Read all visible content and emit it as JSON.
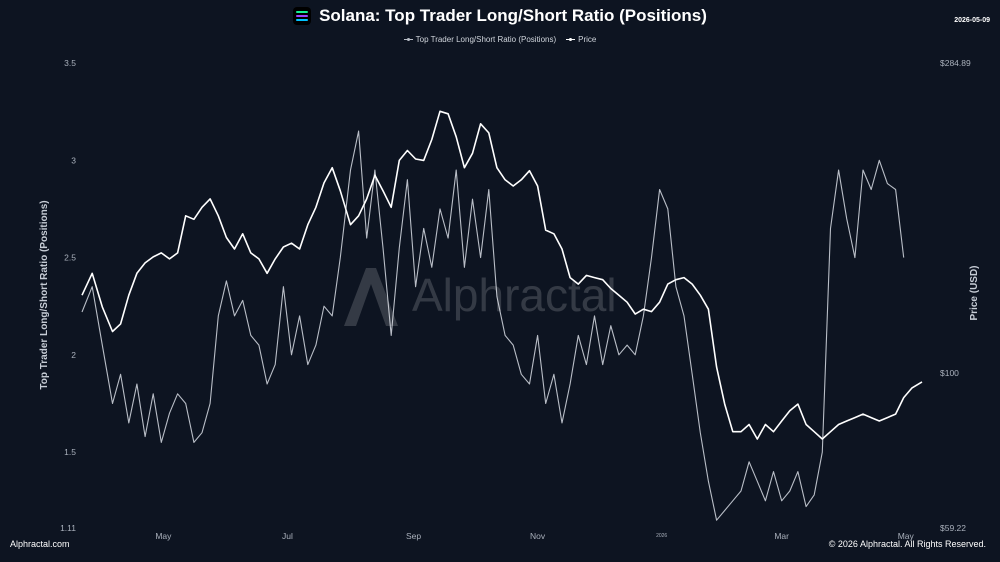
{
  "header": {
    "title": "Solana: Top Trader Long/Short Ratio (Positions)",
    "date": "2026-05-09"
  },
  "legend": {
    "ratio_label": "Top Trader Long/Short Ratio (Positions)",
    "price_label": "Price"
  },
  "watermark": "Alphractal",
  "footer": {
    "left": "Alphractal.com",
    "right": "© 2026 Alphractal. All Rights Reserved."
  },
  "colors": {
    "background": "#0d1421",
    "ratio_line": "#b9bec7",
    "price_line": "#ffffff",
    "logo_stripes": [
      "#14f195",
      "#9945ff",
      "#00c2ff"
    ]
  },
  "chart_data": {
    "type": "line",
    "title": "Solana: Top Trader Long/Short Ratio (Positions)",
    "ylabel": "Top Trader Long/Short Ratio (Positions)",
    "y2label": "Price (USD)",
    "ylim": [
      1.11,
      3.5
    ],
    "y_ticks": [
      {
        "value": 3.5,
        "label": "3.5"
      },
      {
        "value": 3,
        "label": "3"
      },
      {
        "value": 2.5,
        "label": "2.5"
      },
      {
        "value": 2,
        "label": "2"
      },
      {
        "value": 1.5,
        "label": "1.5"
      },
      {
        "value": 1.11,
        "label": "1.11"
      }
    ],
    "y2_scale": "log",
    "y2lim": [
      59.22,
      284.89
    ],
    "y2_ticks": [
      {
        "value": 284.89,
        "label": "$284.89"
      },
      {
        "value": 100,
        "label": "$100"
      },
      {
        "value": 59.22,
        "label": "$59.22"
      }
    ],
    "x_ticks": [
      "May",
      "Jul",
      "Sep",
      "Nov",
      "2026",
      "Mar",
      "May"
    ],
    "x_start": "2025-03-22",
    "x_end": "2026-05-09",
    "grid": false,
    "legend_position": "top-center",
    "series": [
      {
        "name": "Top Trader Long/Short Ratio (Positions)",
        "axis": "left",
        "points": [
          [
            "2025-03-22",
            2.22
          ],
          [
            "2025-03-27",
            2.35
          ],
          [
            "2025-04-01",
            2.05
          ],
          [
            "2025-04-06",
            1.75
          ],
          [
            "2025-04-10",
            1.9
          ],
          [
            "2025-04-14",
            1.65
          ],
          [
            "2025-04-18",
            1.85
          ],
          [
            "2025-04-22",
            1.58
          ],
          [
            "2025-04-26",
            1.8
          ],
          [
            "2025-04-30",
            1.55
          ],
          [
            "2025-05-04",
            1.7
          ],
          [
            "2025-05-08",
            1.8
          ],
          [
            "2025-05-12",
            1.75
          ],
          [
            "2025-05-16",
            1.55
          ],
          [
            "2025-05-20",
            1.6
          ],
          [
            "2025-05-24",
            1.75
          ],
          [
            "2025-05-28",
            2.2
          ],
          [
            "2025-06-01",
            2.38
          ],
          [
            "2025-06-05",
            2.2
          ],
          [
            "2025-06-09",
            2.28
          ],
          [
            "2025-06-13",
            2.1
          ],
          [
            "2025-06-17",
            2.05
          ],
          [
            "2025-06-21",
            1.85
          ],
          [
            "2025-06-25",
            1.95
          ],
          [
            "2025-06-29",
            2.35
          ],
          [
            "2025-07-03",
            2.0
          ],
          [
            "2025-07-07",
            2.2
          ],
          [
            "2025-07-11",
            1.95
          ],
          [
            "2025-07-15",
            2.05
          ],
          [
            "2025-07-19",
            2.25
          ],
          [
            "2025-07-23",
            2.2
          ],
          [
            "2025-07-27",
            2.5
          ],
          [
            "2025-08-01",
            2.95
          ],
          [
            "2025-08-05",
            3.15
          ],
          [
            "2025-08-09",
            2.6
          ],
          [
            "2025-08-13",
            2.95
          ],
          [
            "2025-08-17",
            2.55
          ],
          [
            "2025-08-21",
            2.1
          ],
          [
            "2025-08-25",
            2.55
          ],
          [
            "2025-08-29",
            2.9
          ],
          [
            "2025-09-02",
            2.35
          ],
          [
            "2025-09-06",
            2.65
          ],
          [
            "2025-09-10",
            2.45
          ],
          [
            "2025-09-14",
            2.75
          ],
          [
            "2025-09-18",
            2.6
          ],
          [
            "2025-09-22",
            2.95
          ],
          [
            "2025-09-26",
            2.45
          ],
          [
            "2025-09-30",
            2.8
          ],
          [
            "2025-10-04",
            2.5
          ],
          [
            "2025-10-08",
            2.85
          ],
          [
            "2025-10-12",
            2.3
          ],
          [
            "2025-10-16",
            2.1
          ],
          [
            "2025-10-20",
            2.05
          ],
          [
            "2025-10-24",
            1.9
          ],
          [
            "2025-10-28",
            1.85
          ],
          [
            "2025-11-01",
            2.1
          ],
          [
            "2025-11-05",
            1.75
          ],
          [
            "2025-11-09",
            1.9
          ],
          [
            "2025-11-13",
            1.65
          ],
          [
            "2025-11-17",
            1.85
          ],
          [
            "2025-11-21",
            2.1
          ],
          [
            "2025-11-25",
            1.95
          ],
          [
            "2025-11-29",
            2.2
          ],
          [
            "2025-12-03",
            1.95
          ],
          [
            "2025-12-07",
            2.15
          ],
          [
            "2025-12-11",
            2.0
          ],
          [
            "2025-12-15",
            2.05
          ],
          [
            "2025-12-19",
            2.0
          ],
          [
            "2025-12-23",
            2.2
          ],
          [
            "2025-12-27",
            2.5
          ],
          [
            "2025-12-31",
            2.85
          ],
          [
            "2026-01-04",
            2.75
          ],
          [
            "2026-01-08",
            2.35
          ],
          [
            "2026-01-12",
            2.2
          ],
          [
            "2026-01-16",
            1.9
          ],
          [
            "2026-01-20",
            1.6
          ],
          [
            "2026-01-24",
            1.35
          ],
          [
            "2026-01-28",
            1.15
          ],
          [
            "2026-02-01",
            1.2
          ],
          [
            "2026-02-05",
            1.25
          ],
          [
            "2026-02-09",
            1.3
          ],
          [
            "2026-02-13",
            1.45
          ],
          [
            "2026-02-17",
            1.35
          ],
          [
            "2026-02-21",
            1.25
          ],
          [
            "2026-02-25",
            1.4
          ],
          [
            "2026-03-01",
            1.25
          ],
          [
            "2026-03-05",
            1.3
          ],
          [
            "2026-03-09",
            1.4
          ],
          [
            "2026-03-13",
            1.22
          ],
          [
            "2026-03-17",
            1.28
          ],
          [
            "2026-03-21",
            1.5
          ],
          [
            "2026-03-25",
            2.65
          ],
          [
            "2026-03-29",
            2.95
          ],
          [
            "2026-04-02",
            2.7
          ],
          [
            "2026-04-06",
            2.5
          ],
          [
            "2026-04-10",
            2.95
          ],
          [
            "2026-04-14",
            2.85
          ],
          [
            "2026-04-18",
            3.0
          ],
          [
            "2026-04-22",
            2.88
          ],
          [
            "2026-04-26",
            2.85
          ],
          [
            "2026-04-30",
            2.5
          ]
        ]
      },
      {
        "name": "Price",
        "axis": "right",
        "points": [
          [
            "2025-03-22",
            130
          ],
          [
            "2025-03-27",
            140
          ],
          [
            "2025-04-01",
            125
          ],
          [
            "2025-04-06",
            115
          ],
          [
            "2025-04-10",
            118
          ],
          [
            "2025-04-14",
            130
          ],
          [
            "2025-04-18",
            140
          ],
          [
            "2025-04-22",
            145
          ],
          [
            "2025-04-26",
            148
          ],
          [
            "2025-04-30",
            150
          ],
          [
            "2025-05-04",
            147
          ],
          [
            "2025-05-08",
            150
          ],
          [
            "2025-05-12",
            170
          ],
          [
            "2025-05-16",
            168
          ],
          [
            "2025-05-20",
            175
          ],
          [
            "2025-05-24",
            180
          ],
          [
            "2025-05-28",
            170
          ],
          [
            "2025-06-01",
            158
          ],
          [
            "2025-06-05",
            152
          ],
          [
            "2025-06-09",
            160
          ],
          [
            "2025-06-13",
            150
          ],
          [
            "2025-06-17",
            147
          ],
          [
            "2025-06-21",
            140
          ],
          [
            "2025-06-25",
            147
          ],
          [
            "2025-06-29",
            153
          ],
          [
            "2025-07-03",
            155
          ],
          [
            "2025-07-07",
            152
          ],
          [
            "2025-07-11",
            165
          ],
          [
            "2025-07-15",
            175
          ],
          [
            "2025-07-19",
            190
          ],
          [
            "2025-07-23",
            200
          ],
          [
            "2025-07-27",
            185
          ],
          [
            "2025-08-01",
            165
          ],
          [
            "2025-08-05",
            170
          ],
          [
            "2025-08-09",
            180
          ],
          [
            "2025-08-13",
            195
          ],
          [
            "2025-08-17",
            185
          ],
          [
            "2025-08-21",
            175
          ],
          [
            "2025-08-25",
            205
          ],
          [
            "2025-08-29",
            212
          ],
          [
            "2025-09-02",
            206
          ],
          [
            "2025-09-06",
            205
          ],
          [
            "2025-09-10",
            220
          ],
          [
            "2025-09-14",
            242
          ],
          [
            "2025-09-18",
            240
          ],
          [
            "2025-09-22",
            222
          ],
          [
            "2025-09-26",
            200
          ],
          [
            "2025-09-30",
            210
          ],
          [
            "2025-10-04",
            232
          ],
          [
            "2025-10-08",
            225
          ],
          [
            "2025-10-12",
            200
          ],
          [
            "2025-10-16",
            192
          ],
          [
            "2025-10-20",
            188
          ],
          [
            "2025-10-24",
            192
          ],
          [
            "2025-10-28",
            198
          ],
          [
            "2025-11-01",
            188
          ],
          [
            "2025-11-05",
            162
          ],
          [
            "2025-11-09",
            160
          ],
          [
            "2025-11-13",
            152
          ],
          [
            "2025-11-17",
            138
          ],
          [
            "2025-11-21",
            135
          ],
          [
            "2025-11-25",
            139
          ],
          [
            "2025-11-29",
            138
          ],
          [
            "2025-12-03",
            137
          ],
          [
            "2025-12-07",
            133
          ],
          [
            "2025-12-11",
            130
          ],
          [
            "2025-12-15",
            127
          ],
          [
            "2025-12-19",
            122
          ],
          [
            "2025-12-23",
            124
          ],
          [
            "2025-12-27",
            123
          ],
          [
            "2025-12-31",
            127
          ],
          [
            "2026-01-04",
            135
          ],
          [
            "2026-01-08",
            137
          ],
          [
            "2026-01-12",
            138
          ],
          [
            "2026-01-16",
            135
          ],
          [
            "2026-01-20",
            130
          ],
          [
            "2026-01-24",
            124
          ],
          [
            "2026-01-28",
            102
          ],
          [
            "2026-02-01",
            90
          ],
          [
            "2026-02-05",
            82
          ],
          [
            "2026-02-09",
            82
          ],
          [
            "2026-02-13",
            84
          ],
          [
            "2026-02-17",
            80
          ],
          [
            "2026-02-21",
            84
          ],
          [
            "2026-02-25",
            82
          ],
          [
            "2026-03-01",
            85
          ],
          [
            "2026-03-05",
            88
          ],
          [
            "2026-03-09",
            90
          ],
          [
            "2026-03-13",
            84
          ],
          [
            "2026-03-17",
            82
          ],
          [
            "2026-03-21",
            80
          ],
          [
            "2026-03-25",
            82
          ],
          [
            "2026-03-29",
            84
          ],
          [
            "2026-04-02",
            85
          ],
          [
            "2026-04-06",
            86
          ],
          [
            "2026-04-10",
            87
          ],
          [
            "2026-04-14",
            86
          ],
          [
            "2026-04-18",
            85
          ],
          [
            "2026-04-22",
            86
          ],
          [
            "2026-04-26",
            87
          ],
          [
            "2026-04-30",
            92
          ],
          [
            "2026-05-04",
            95
          ],
          [
            "2026-05-09",
            97
          ]
        ]
      }
    ]
  }
}
